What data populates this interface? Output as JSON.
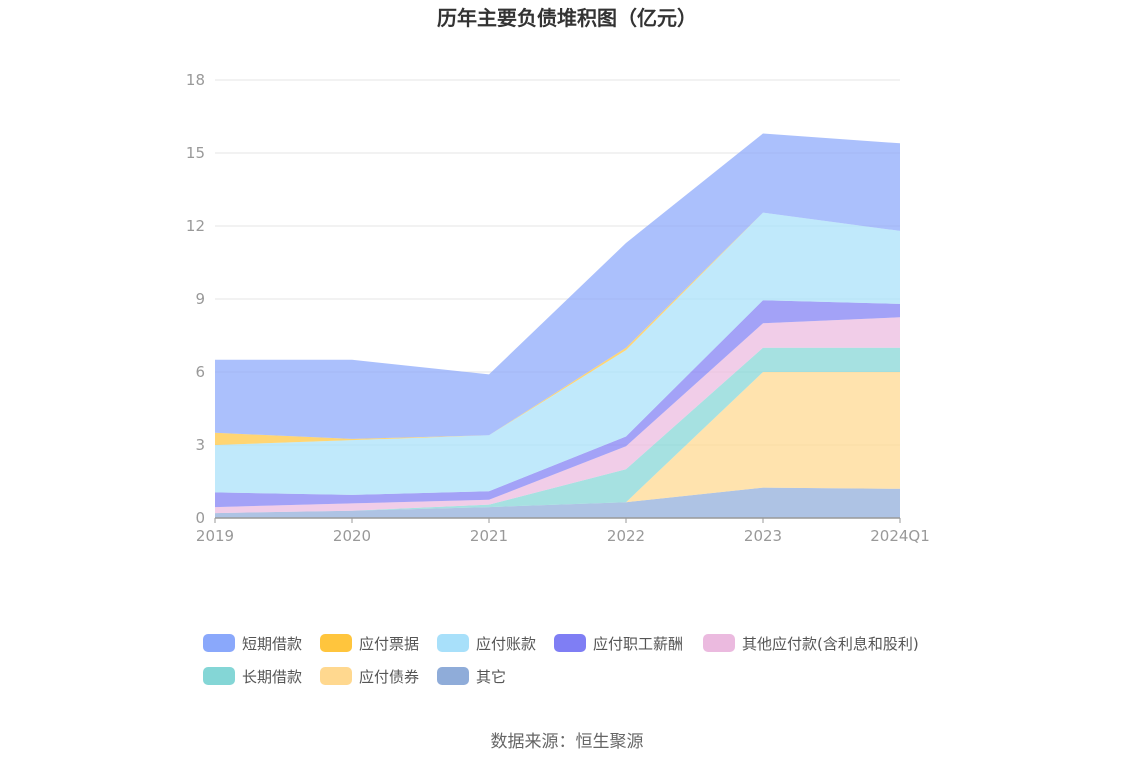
{
  "source_label": "数据来源：恒生聚源",
  "chart_data": {
    "type": "area",
    "stacked": true,
    "title": "历年主要负债堆积图（亿元）",
    "xlabel": "",
    "ylabel": "",
    "ylim": [
      0,
      18
    ],
    "yticks": [
      0,
      3,
      6,
      9,
      12,
      15,
      18
    ],
    "grid": true,
    "legend_position": "bottom",
    "categories": [
      "2019",
      "2020",
      "2021",
      "2022",
      "2023",
      "2024Q1"
    ],
    "series": [
      {
        "name": "其它",
        "color": "#8facd9",
        "values": [
          0.2,
          0.3,
          0.45,
          0.65,
          1.25,
          1.2
        ]
      },
      {
        "name": "应付债券",
        "color": "#ffd88f",
        "values": [
          0,
          0,
          0,
          0,
          4.75,
          4.8
        ]
      },
      {
        "name": "长期借款",
        "color": "#84d6d6",
        "values": [
          0,
          0,
          0.1,
          1.35,
          1.0,
          1.0
        ]
      },
      {
        "name": "其他应付款(含利息和股利)",
        "color": "#ebbadf",
        "values": [
          0.25,
          0.3,
          0.2,
          0.95,
          1.0,
          1.25
        ]
      },
      {
        "name": "应付职工薪酬",
        "color": "#7f7ef4",
        "values": [
          0.6,
          0.35,
          0.35,
          0.4,
          0.95,
          0.55
        ]
      },
      {
        "name": "应付账款",
        "color": "#a8e0fa",
        "values": [
          1.95,
          2.25,
          2.3,
          3.55,
          3.6,
          3.0
        ]
      },
      {
        "name": "应付票据",
        "color": "#ffc53d",
        "values": [
          0.5,
          0.05,
          0,
          0.1,
          0,
          0
        ]
      },
      {
        "name": "短期借款",
        "color": "#8aa8fb",
        "values": [
          3.0,
          3.25,
          2.5,
          4.3,
          3.25,
          3.6
        ]
      }
    ],
    "legend_order": [
      "短期借款",
      "应付票据",
      "应付账款",
      "应付职工薪酬",
      "其他应付款(含利息和股利)",
      "长期借款",
      "应付债券",
      "其它"
    ]
  }
}
